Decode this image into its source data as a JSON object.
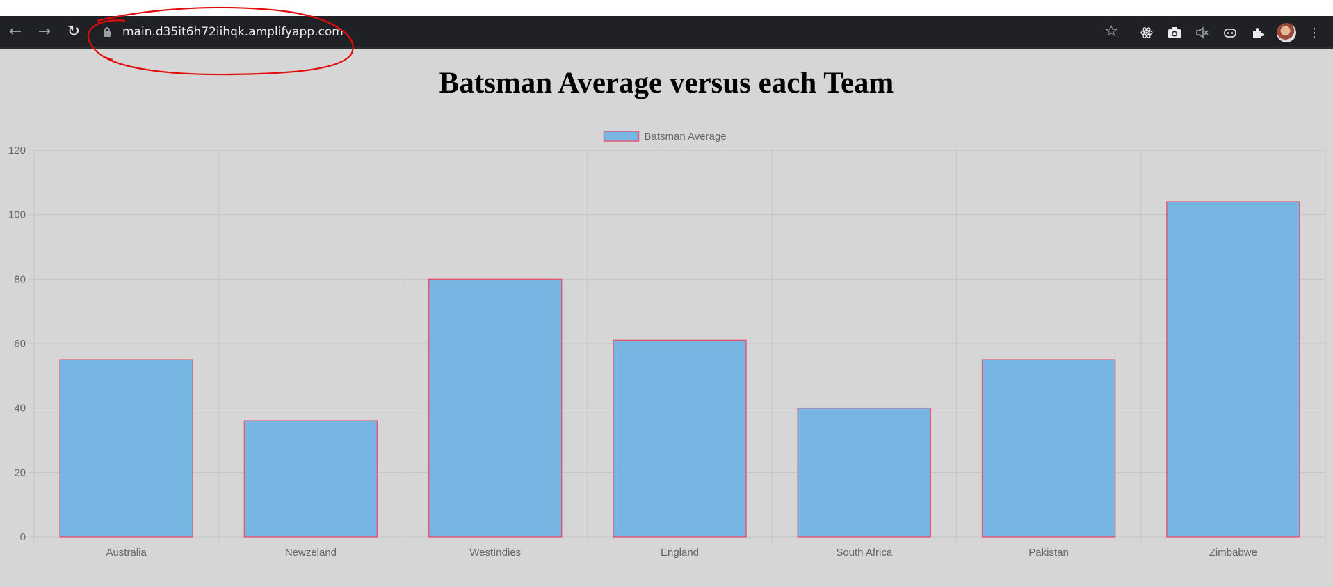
{
  "browser": {
    "url": "main.d35it6h72iihqk.amplifyapp.com",
    "back_icon": "←",
    "forward_icon": "→",
    "reload_icon": "↻",
    "star_icon": "☆",
    "menu_icon": "⋮"
  },
  "page": {
    "title": "Batsman Average versus each Team"
  },
  "chart_data": {
    "type": "bar",
    "title": "Batsman Average versus each Team",
    "xlabel": "",
    "ylabel": "",
    "categories": [
      "Australia",
      "Newzeland",
      "WestIndies",
      "England",
      "South Africa",
      "Pakistan",
      "Zimbabwe"
    ],
    "series": [
      {
        "name": "Batsman Average",
        "values": [
          55,
          36,
          80,
          61,
          40,
          55,
          104
        ]
      }
    ],
    "ylim": [
      0,
      120
    ],
    "yticks": [
      0,
      20,
      40,
      60,
      80,
      100,
      120
    ],
    "grid": true,
    "legend": "top-center",
    "colors": {
      "bar_fill": "#77b5e3",
      "bar_border": "#e05a7a",
      "grid": "#c4c4c4",
      "axis_text": "#666666"
    }
  }
}
